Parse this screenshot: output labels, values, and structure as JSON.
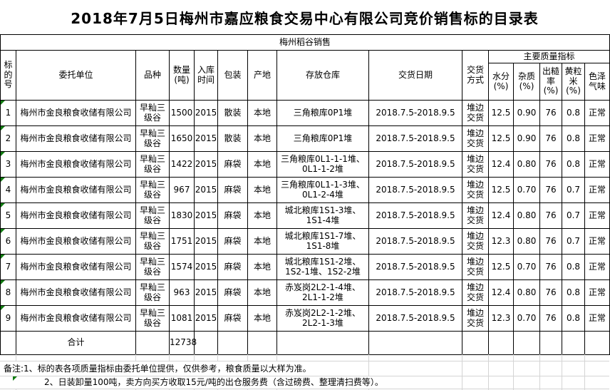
{
  "title": "2018年7月5日梅州市嘉应粮食交易中心有限公司竞价销售标的目录表",
  "subtitle": "梅州稻谷销售",
  "table": {
    "headers": {
      "no": "标\n的\n号",
      "company": "委托单位",
      "variety": "品种",
      "quantity": "数量\n(吨)",
      "storage_time": "入库\n时间",
      "packing": "包装",
      "origin": "产地",
      "warehouse": "存放仓库",
      "delivery_date": "交货日期",
      "delivery_method": "交货\n方式",
      "quality_group": "主要质量指标",
      "moisture": "水分\n(%)",
      "impurity": "杂质\n(%)",
      "brown_rice_rate": "出糙\n率\n(%)",
      "yellow_grain": "黄粒\n米\n(%)",
      "color_odor": "色泽\n气味"
    },
    "rows": [
      [
        "1",
        "梅州市金良粮食收储有限公司",
        "早籼三\n级谷",
        "1500",
        "2015",
        "散装",
        "本地",
        "三角粮库0P1堆",
        "2018.7.5-2018.9.5",
        "堆边\n交货",
        "12.5",
        "0.90",
        "76",
        "0.8",
        "正常"
      ],
      [
        "2",
        "梅州市金良粮食收储有限公司",
        "早籼三\n级谷",
        "1650",
        "2015",
        "散装",
        "本地",
        "三角粮库0P1堆",
        "2018.7.5-2018.9.5",
        "堆边\n交货",
        "12.5",
        "0.90",
        "76",
        "0.8",
        "正常"
      ],
      [
        "3",
        "梅州市金良粮食收储有限公司",
        "早籼三\n级谷",
        "1422",
        "2015",
        "麻袋",
        "本地",
        "三角粮库0L1-1-1堆、\n0L1-1-2堆",
        "2018.7.5-2018.9.5",
        "堆边\n交货",
        "12.4",
        "0.80",
        "76",
        "0.8",
        "正常"
      ],
      [
        "4",
        "梅州市金良粮食收储有限公司",
        "早籼三\n级谷",
        "967",
        "2015",
        "麻袋",
        "本地",
        "三角粮库0L1-1-3堆、\n0L1-2-4堆",
        "2018.7.5-2018.9.5",
        "堆边\n交货",
        "12.5",
        "0.70",
        "76",
        "0.7",
        "正常"
      ],
      [
        "5",
        "梅州市金良粮食收储有限公司",
        "早籼三\n级谷",
        "1830",
        "2015",
        "麻袋",
        "本地",
        "城北粮库1S1-3堆、\n1S1-4堆",
        "2018.7.5-2018.9.5",
        "堆边\n交货",
        "12.4",
        "0.80",
        "76",
        "0.7",
        "正常"
      ],
      [
        "6",
        "梅州市金良粮食收储有限公司",
        "早籼三\n级谷",
        "1751",
        "2015",
        "麻袋",
        "本地",
        "城北粮库1S1-7堆、\n1S1-8堆",
        "2018.7.5-2018.9.5",
        "堆边\n交货",
        "12.3",
        "0.80",
        "76",
        "0.7",
        "正常"
      ],
      [
        "7",
        "梅州市金良粮食收储有限公司",
        "早籼三\n级谷",
        "1574",
        "2015",
        "麻袋",
        "本地",
        "城北粮库1S1-2堆、\n1S2-1堆、1S2-2堆",
        "2018.7.5-2018.9.5",
        "堆边\n交货",
        "12.5",
        "0.70",
        "76",
        "0.8",
        "正常"
      ],
      [
        "8",
        "梅州市金良粮食收储有限公司",
        "早籼三\n级谷",
        "963",
        "2015",
        "麻袋",
        "本地",
        "赤岌岗2L2-1-4堆、\n2L1-1-2堆",
        "2018.7.5-2018.9.5",
        "堆边\n交货",
        "12.4",
        "0.80",
        "76",
        "0.8",
        "正常"
      ],
      [
        "9",
        "梅州市金良粮食收储有限公司",
        "早籼三\n级谷",
        "1081",
        "2015",
        "麻袋",
        "本地",
        "赤岌岗2L2-1-2堆、\n2L2-1-3堆",
        "2018.7.5-2018.9.5",
        "堆边\n交货",
        "12.3",
        "0.70",
        "76",
        "0.8",
        "正常"
      ]
    ],
    "total": {
      "label": "合计",
      "quantity": "12738"
    }
  },
  "notes": [
    "备注:1、标的表各项质量指标由委托单位提供，仅供参考，粮食质量以大样为准。",
    "2、日装卸量100吨，卖方向买方收取15元/吨的出仓服务费（含过磅费、整理清扫费等）。"
  ],
  "colors": {
    "border": "#000000",
    "text": "#000000",
    "background": "#ffffff",
    "gridline": "#d4d4d4",
    "error_indicator_green": "#107c10"
  }
}
